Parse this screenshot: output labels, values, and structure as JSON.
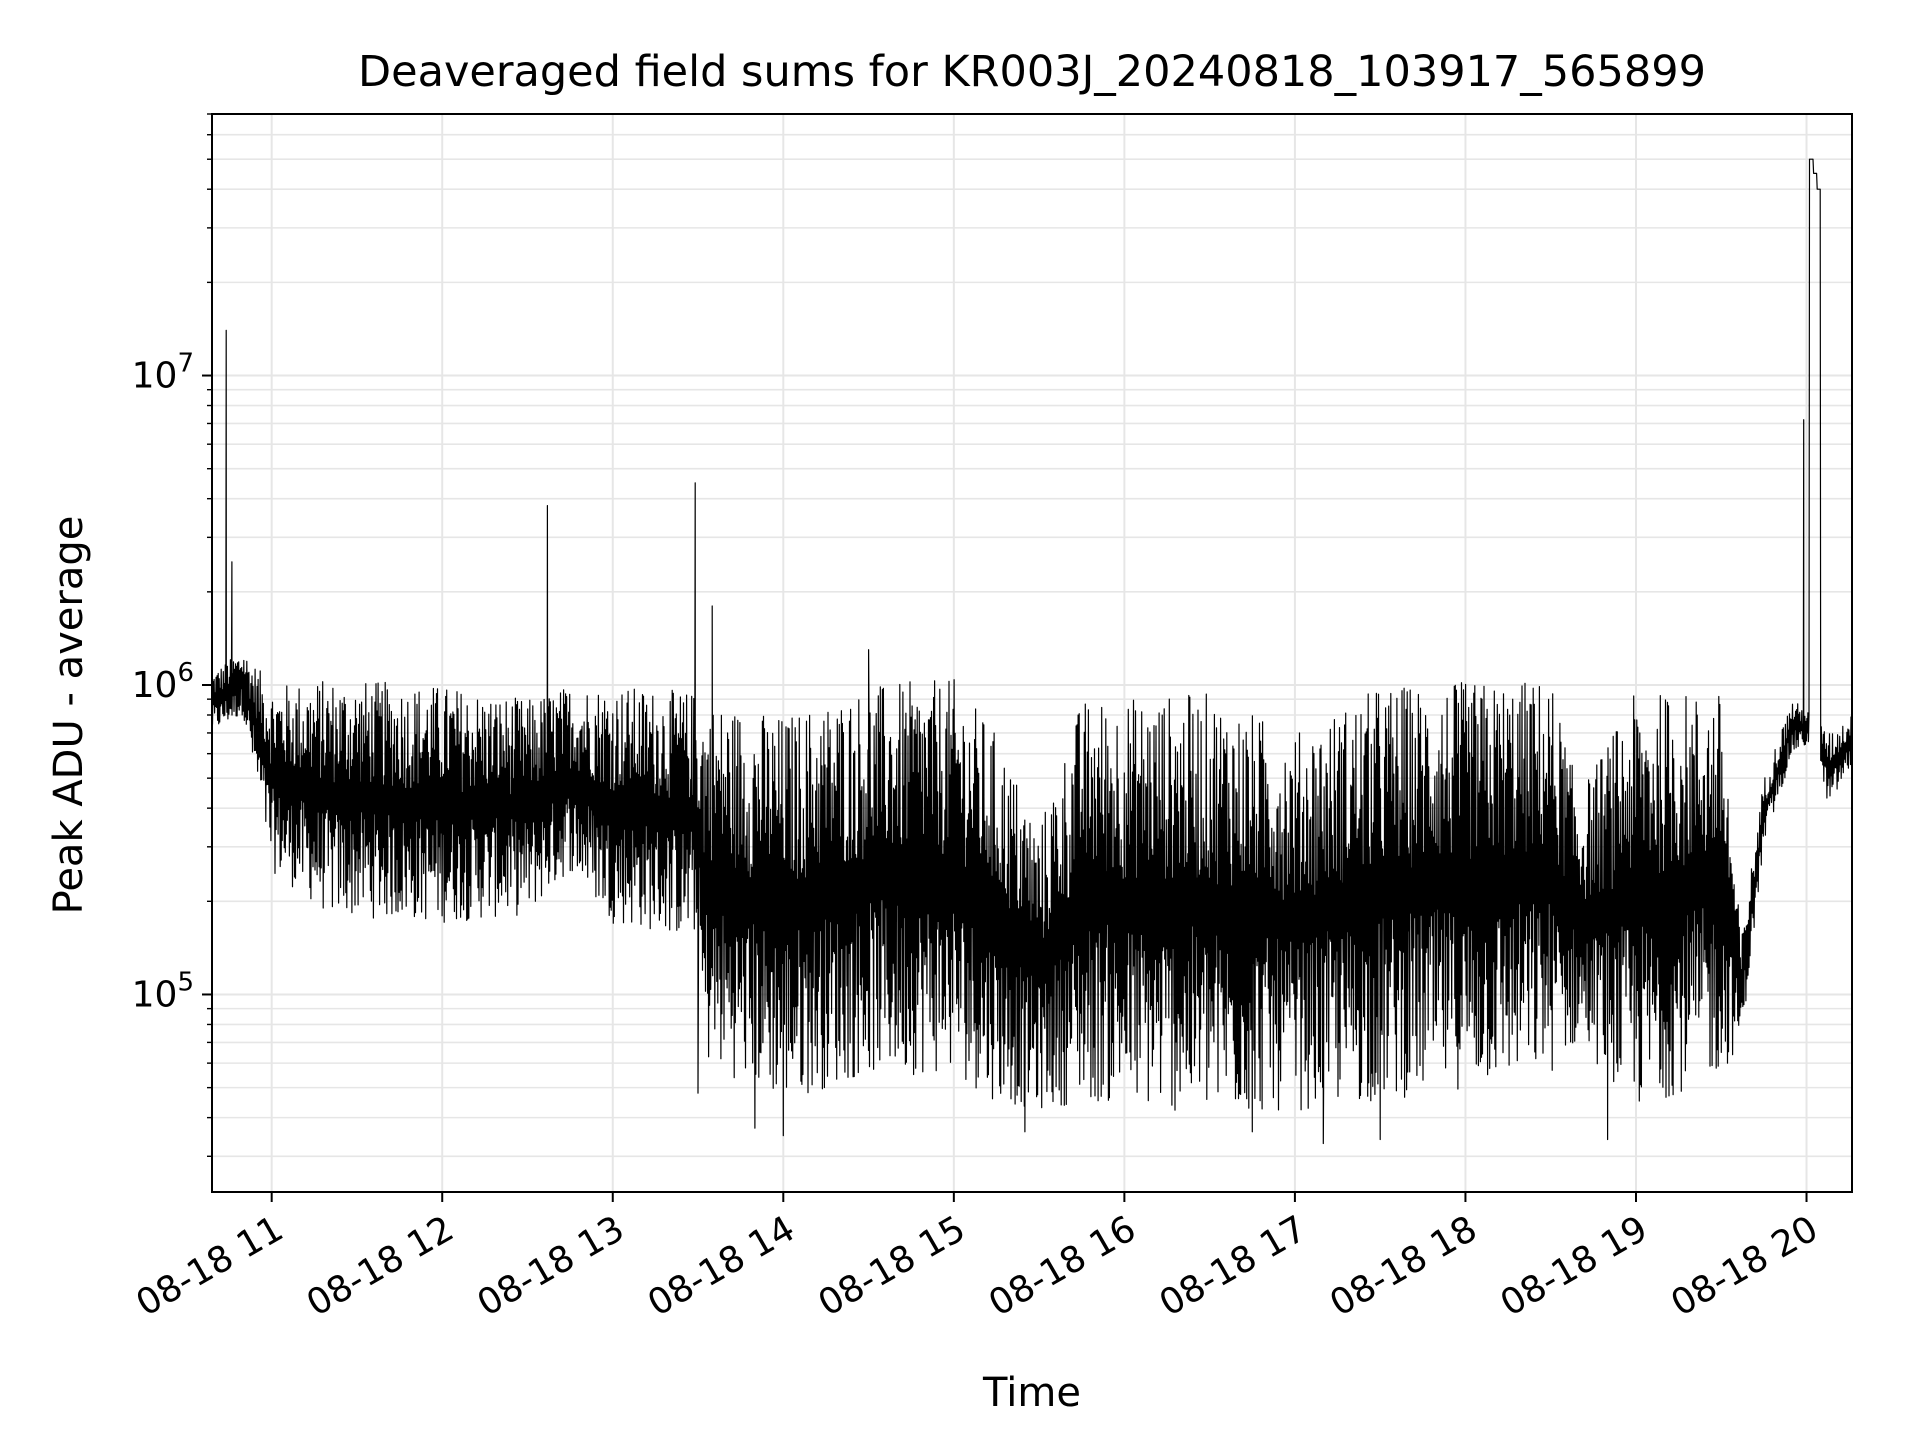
{
  "chart_data": {
    "type": "line",
    "title": "Deaveraged field sums for KR003J_20240818_103917_565899",
    "xlabel": "Time",
    "ylabel": "Peak ADU - average",
    "y_scale": "log",
    "ylim": [
      23000,
      70000000
    ],
    "xlim": [
      "2024-08-18 10:39",
      "2024-08-18 20:16"
    ],
    "grid": true,
    "line_color": "#000000",
    "grid_color": "#e6e6e6",
    "x_ticks": [
      {
        "t": "2024-08-18 11:00",
        "label": "08-18 11"
      },
      {
        "t": "2024-08-18 12:00",
        "label": "08-18 12"
      },
      {
        "t": "2024-08-18 13:00",
        "label": "08-18 13"
      },
      {
        "t": "2024-08-18 14:00",
        "label": "08-18 14"
      },
      {
        "t": "2024-08-18 15:00",
        "label": "08-18 15"
      },
      {
        "t": "2024-08-18 16:00",
        "label": "08-18 16"
      },
      {
        "t": "2024-08-18 17:00",
        "label": "08-18 17"
      },
      {
        "t": "2024-08-18 18:00",
        "label": "08-18 18"
      },
      {
        "t": "2024-08-18 19:00",
        "label": "08-18 19"
      },
      {
        "t": "2024-08-18 20:00",
        "label": "08-18 20"
      }
    ],
    "y_ticks": [
      {
        "value": 100000,
        "base": "10",
        "exp": "5"
      },
      {
        "value": 1000000,
        "base": "10",
        "exp": "6"
      },
      {
        "value": 10000000,
        "base": "10",
        "exp": "7"
      }
    ],
    "envelope": [
      {
        "t": "2024-08-18 10:39",
        "low": 700000,
        "high": 1100000
      },
      {
        "t": "2024-08-18 10:50",
        "low": 800000,
        "high": 1300000
      },
      {
        "t": "2024-08-18 11:00",
        "low": 250000,
        "high": 1000000
      },
      {
        "t": "2024-08-18 11:20",
        "low": 180000,
        "high": 1050000
      },
      {
        "t": "2024-08-18 12:00",
        "low": 170000,
        "high": 1000000
      },
      {
        "t": "2024-08-18 12:30",
        "low": 180000,
        "high": 900000
      },
      {
        "t": "2024-08-18 12:45",
        "low": 250000,
        "high": 1000000
      },
      {
        "t": "2024-08-18 13:00",
        "low": 170000,
        "high": 1000000
      },
      {
        "t": "2024-08-18 13:29",
        "low": 150000,
        "high": 950000
      },
      {
        "t": "2024-08-18 13:32",
        "low": 60000,
        "high": 900000
      },
      {
        "t": "2024-08-18 14:00",
        "low": 45000,
        "high": 800000
      },
      {
        "t": "2024-08-18 14:30",
        "low": 55000,
        "high": 1000000
      },
      {
        "t": "2024-08-18 15:00",
        "low": 55000,
        "high": 1050000
      },
      {
        "t": "2024-08-18 15:15",
        "low": 45000,
        "high": 700000
      },
      {
        "t": "2024-08-18 15:30",
        "low": 42000,
        "high": 350000
      },
      {
        "t": "2024-08-18 15:45",
        "low": 45000,
        "high": 900000
      },
      {
        "t": "2024-08-18 16:30",
        "low": 40000,
        "high": 950000
      },
      {
        "t": "2024-08-18 17:00",
        "low": 42000,
        "high": 700000
      },
      {
        "t": "2024-08-18 17:30",
        "low": 45000,
        "high": 1000000
      },
      {
        "t": "2024-08-18 18:30",
        "low": 55000,
        "high": 1050000
      },
      {
        "t": "2024-08-18 18:40",
        "low": 70000,
        "high": 450000
      },
      {
        "t": "2024-08-18 19:00",
        "low": 42000,
        "high": 950000
      },
      {
        "t": "2024-08-18 19:30",
        "low": 55000,
        "high": 950000
      },
      {
        "t": "2024-08-18 19:37",
        "low": 70000,
        "high": 150000
      },
      {
        "t": "2024-08-18 19:45",
        "low": 300000,
        "high": 500000
      },
      {
        "t": "2024-08-18 19:55",
        "low": 600000,
        "high": 900000
      },
      {
        "t": "2024-08-18 20:02",
        "low": 650000,
        "high": 800000
      },
      {
        "t": "2024-08-18 20:08",
        "low": 400000,
        "high": 700000
      },
      {
        "t": "2024-08-18 20:16",
        "low": 550000,
        "high": 800000
      }
    ],
    "spikes": [
      {
        "t": "2024-08-18 10:44",
        "value": 14000000
      },
      {
        "t": "2024-08-18 10:46",
        "value": 2500000
      },
      {
        "t": "2024-08-18 12:37",
        "value": 3800000
      },
      {
        "t": "2024-08-18 13:29",
        "value": 4500000
      },
      {
        "t": "2024-08-18 13:35",
        "value": 1800000
      },
      {
        "t": "2024-08-18 14:30",
        "value": 1300000
      },
      {
        "t": "2024-08-18 19:59",
        "value": 7200000
      }
    ],
    "dips": [
      {
        "t": "2024-08-18 13:30",
        "value": 48000
      },
      {
        "t": "2024-08-18 13:50",
        "value": 37000
      },
      {
        "t": "2024-08-18 14:00",
        "value": 35000
      },
      {
        "t": "2024-08-18 15:25",
        "value": 36000
      },
      {
        "t": "2024-08-18 16:45",
        "value": 36000
      },
      {
        "t": "2024-08-18 17:10",
        "value": 33000
      },
      {
        "t": "2024-08-18 17:30",
        "value": 34000
      },
      {
        "t": "2024-08-18 18:50",
        "value": 34000
      }
    ],
    "plateau": {
      "start": "2024-08-18 20:01",
      "end": "2024-08-18 20:05",
      "values": [
        50000000,
        45000000,
        40000000
      ]
    }
  }
}
